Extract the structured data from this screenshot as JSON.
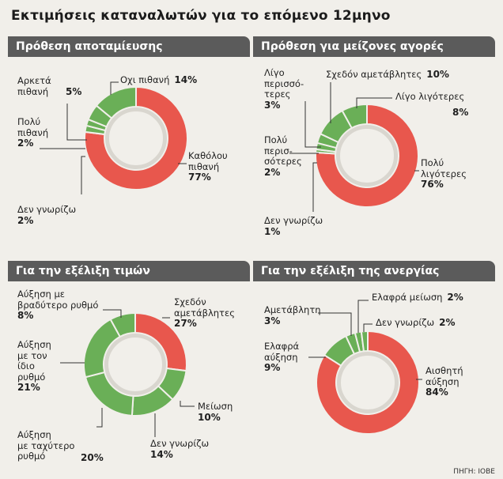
{
  "page": {
    "title": "Εκτιμήσεις καταναλωτών για το επόμενο 12μηνο",
    "source": "ΠΗΓΗ: ΙΟΒΕ"
  },
  "colors": {
    "red": "#e8574d",
    "green": "#6aaf57",
    "header_bg": "#5b5b5b",
    "background": "#f1efea"
  },
  "chart_data": [
    {
      "type": "pie",
      "title": "Πρόθεση αποταμίευσης",
      "slices": [
        {
          "label": "Καθόλου πιθανή",
          "value": 77,
          "display": "77%",
          "color": "red"
        },
        {
          "label": "Δεν γνωρίζω",
          "value": 2,
          "display": "2%",
          "color": "green"
        },
        {
          "label": "Πολύ πιθανή",
          "value": 2,
          "display": "2%",
          "color": "green"
        },
        {
          "label": "Αρκετά πιθανή",
          "value": 5,
          "display": "5%",
          "color": "green"
        },
        {
          "label": "Οχι πιθανή",
          "value": 14,
          "display": "14%",
          "color": "green"
        }
      ]
    },
    {
      "type": "pie",
      "title": "Πρόθεση για μείζονες αγορές",
      "slices": [
        {
          "label": "Πολύ λιγότερες",
          "value": 76,
          "display": "76%",
          "color": "red"
        },
        {
          "label": "Δεν γνωρίζω",
          "value": 1,
          "display": "1%",
          "color": "green"
        },
        {
          "label": "Πολύ περισσότερες",
          "value": 2,
          "display": "2%",
          "color": "green"
        },
        {
          "label": "Λίγο περισσότερες",
          "value": 3,
          "display": "3%",
          "color": "green"
        },
        {
          "label": "Σχεδόν αμετάβλητες",
          "value": 10,
          "display": "10%",
          "color": "green"
        },
        {
          "label": "Λίγο λιγότερες",
          "value": 8,
          "display": "8%",
          "color": "green"
        }
      ]
    },
    {
      "type": "pie",
      "title": "Για την εξέλιξη τιμών",
      "slices": [
        {
          "label": "Σχεδόν αμετάβλητες",
          "value": 27,
          "display": "27%",
          "color": "red"
        },
        {
          "label": "Μείωση",
          "value": 10,
          "display": "10%",
          "color": "green"
        },
        {
          "label": "Δεν γνωρίζω",
          "value": 14,
          "display": "14%",
          "color": "green"
        },
        {
          "label": "Αύξηση με ταχύτερο ρυθμό",
          "value": 20,
          "display": "20%",
          "color": "green"
        },
        {
          "label": "Αύξηση με τον ίδιο ρυθμό",
          "value": 21,
          "display": "21%",
          "color": "green"
        },
        {
          "label": "Αύξηση με βραδύτερο ρυθμό",
          "value": 8,
          "display": "8%",
          "color": "green"
        }
      ]
    },
    {
      "type": "pie",
      "title": "Για την εξέλιξη της ανεργίας",
      "slices": [
        {
          "label": "Αισθητή αύξηση",
          "value": 84,
          "display": "84%",
          "color": "red"
        },
        {
          "label": "Ελαφρά αύξηση",
          "value": 9,
          "display": "9%",
          "color": "green"
        },
        {
          "label": "Αμετάβλητη",
          "value": 3,
          "display": "3%",
          "color": "green"
        },
        {
          "label": "Ελαφρά μείωση",
          "value": 2,
          "display": "2%",
          "color": "green"
        },
        {
          "label": "Δεν γνωρίζω",
          "value": 2,
          "display": "2%",
          "color": "green"
        }
      ]
    }
  ],
  "labels": {
    "p1": {
      "kathollou": {
        "text": "Καθόλου\nπιθανή",
        "pct": "77%"
      },
      "dengnorizo": {
        "text": "Δεν γνωρίζω",
        "pct": "2%"
      },
      "poly": {
        "text": "Πολύ\nπιθανή",
        "pct": "2%"
      },
      "arketa": {
        "text": "Αρκετά\nπιθανή",
        "pct": "5%"
      },
      "oxi": {
        "text": "Οχι πιθανή",
        "pct": "14%"
      }
    },
    "p2": {
      "polylig": {
        "text": "Πολύ\nλιγότερες",
        "pct": "76%"
      },
      "dengnorizo": {
        "text": "Δεν γνωρίζω",
        "pct": "1%"
      },
      "polyper": {
        "text": "Πολύ\nπερισ-\nσότερες",
        "pct": "2%"
      },
      "ligoper": {
        "text": "Λίγο\nπερισσό-\nτερες",
        "pct": "3%"
      },
      "sxedon": {
        "text": "Σχεδόν αμετάβλητες",
        "pct": "10%"
      },
      "ligolig": {
        "text": "Λίγο λιγότερες",
        "pct": "8%"
      }
    },
    "p3": {
      "sxedon": {
        "text": "Σχεδόν\nαμετάβλητες",
        "pct": "27%"
      },
      "meiosi": {
        "text": "Μείωση",
        "pct": "10%"
      },
      "dengnorizo": {
        "text": "Δεν γνωρίζω",
        "pct": "14%"
      },
      "taxytero": {
        "text": "Αύξηση\nμε ταχύτερο\nρυθμό",
        "pct": "20%"
      },
      "idio": {
        "text": "Αύξηση\nμε τον\nίδιο\nρυθμό",
        "pct": "21%"
      },
      "vradytero": {
        "text": "Αύξηση με\nβραδύτερο ρυθμό",
        "pct": "8%"
      }
    },
    "p4": {
      "aisthiti": {
        "text": "Αισθητή\nαύξηση",
        "pct": "84%"
      },
      "elafra_ayxisi": {
        "text": "Ελαφρά\nαύξηση",
        "pct": "9%"
      },
      "ametavliti": {
        "text": "Αμετάβλητη",
        "pct": "3%"
      },
      "elafra_meiosi": {
        "text": "Ελαφρά μείωση",
        "pct": "2%"
      },
      "dengnorizo": {
        "text": "Δεν γνωρίζω",
        "pct": "2%"
      }
    }
  }
}
